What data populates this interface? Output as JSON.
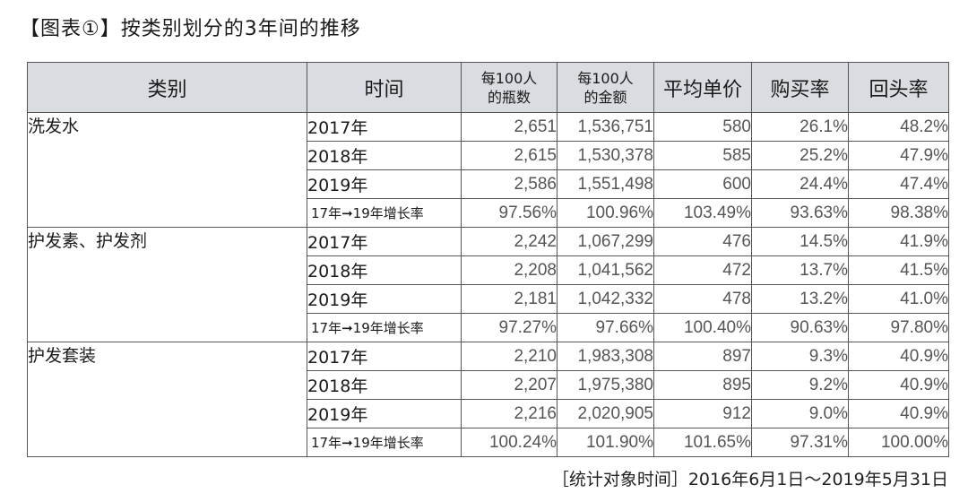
{
  "title": "【图表①】按类别划分的3年间的推移",
  "headers": {
    "category": "类别",
    "period": "时间",
    "bottles_line1": "每100人",
    "bottles_line2": "的瓶数",
    "amount_line1": "每100人",
    "amount_line2": "的金额",
    "unit_price": "平均单价",
    "purchase_rate": "购买率",
    "repeat_rate": "回头率"
  },
  "groups": [
    {
      "category": "洗发水",
      "rows": [
        {
          "period": "2017年",
          "values": [
            "2,651",
            "1,536,751",
            "580",
            "26.1%",
            "48.2%"
          ]
        },
        {
          "period": "2018年",
          "values": [
            "2,615",
            "1,530,378",
            "585",
            "25.2%",
            "47.9%"
          ]
        },
        {
          "period": "2019年",
          "values": [
            "2,586",
            "1,551,498",
            "600",
            "24.4%",
            "47.4%"
          ]
        },
        {
          "period": "17年➞19年增长率",
          "values": [
            "97.56%",
            "100.96%",
            "103.49%",
            "93.63%",
            "98.38%"
          ]
        }
      ]
    },
    {
      "category": "护发素、护发剂",
      "rows": [
        {
          "period": "2017年",
          "values": [
            "2,242",
            "1,067,299",
            "476",
            "14.5%",
            "41.9%"
          ]
        },
        {
          "period": "2018年",
          "values": [
            "2,208",
            "1,041,562",
            "472",
            "13.7%",
            "41.5%"
          ]
        },
        {
          "period": "2019年",
          "values": [
            "2,181",
            "1,042,332",
            "478",
            "13.2%",
            "41.0%"
          ]
        },
        {
          "period": "17年➞19年增长率",
          "values": [
            "97.27%",
            "97.66%",
            "100.40%",
            "90.63%",
            "97.80%"
          ]
        }
      ]
    },
    {
      "category": "护发套装",
      "rows": [
        {
          "period": "2017年",
          "values": [
            "2,210",
            "1,983,308",
            "897",
            "9.3%",
            "40.9%"
          ]
        },
        {
          "period": "2018年",
          "values": [
            "2,207",
            "1,975,380",
            "895",
            "9.2%",
            "40.9%"
          ]
        },
        {
          "period": "2019年",
          "values": [
            "2,216",
            "2,020,905",
            "912",
            "9.0%",
            "40.9%"
          ]
        },
        {
          "period": "17年➞19年增长率",
          "values": [
            "100.24%",
            "101.90%",
            "101.65%",
            "97.31%",
            "100.00%"
          ]
        }
      ]
    }
  ],
  "footer": "［统计对象时间］2016年6月1日～2019年5月31日"
}
